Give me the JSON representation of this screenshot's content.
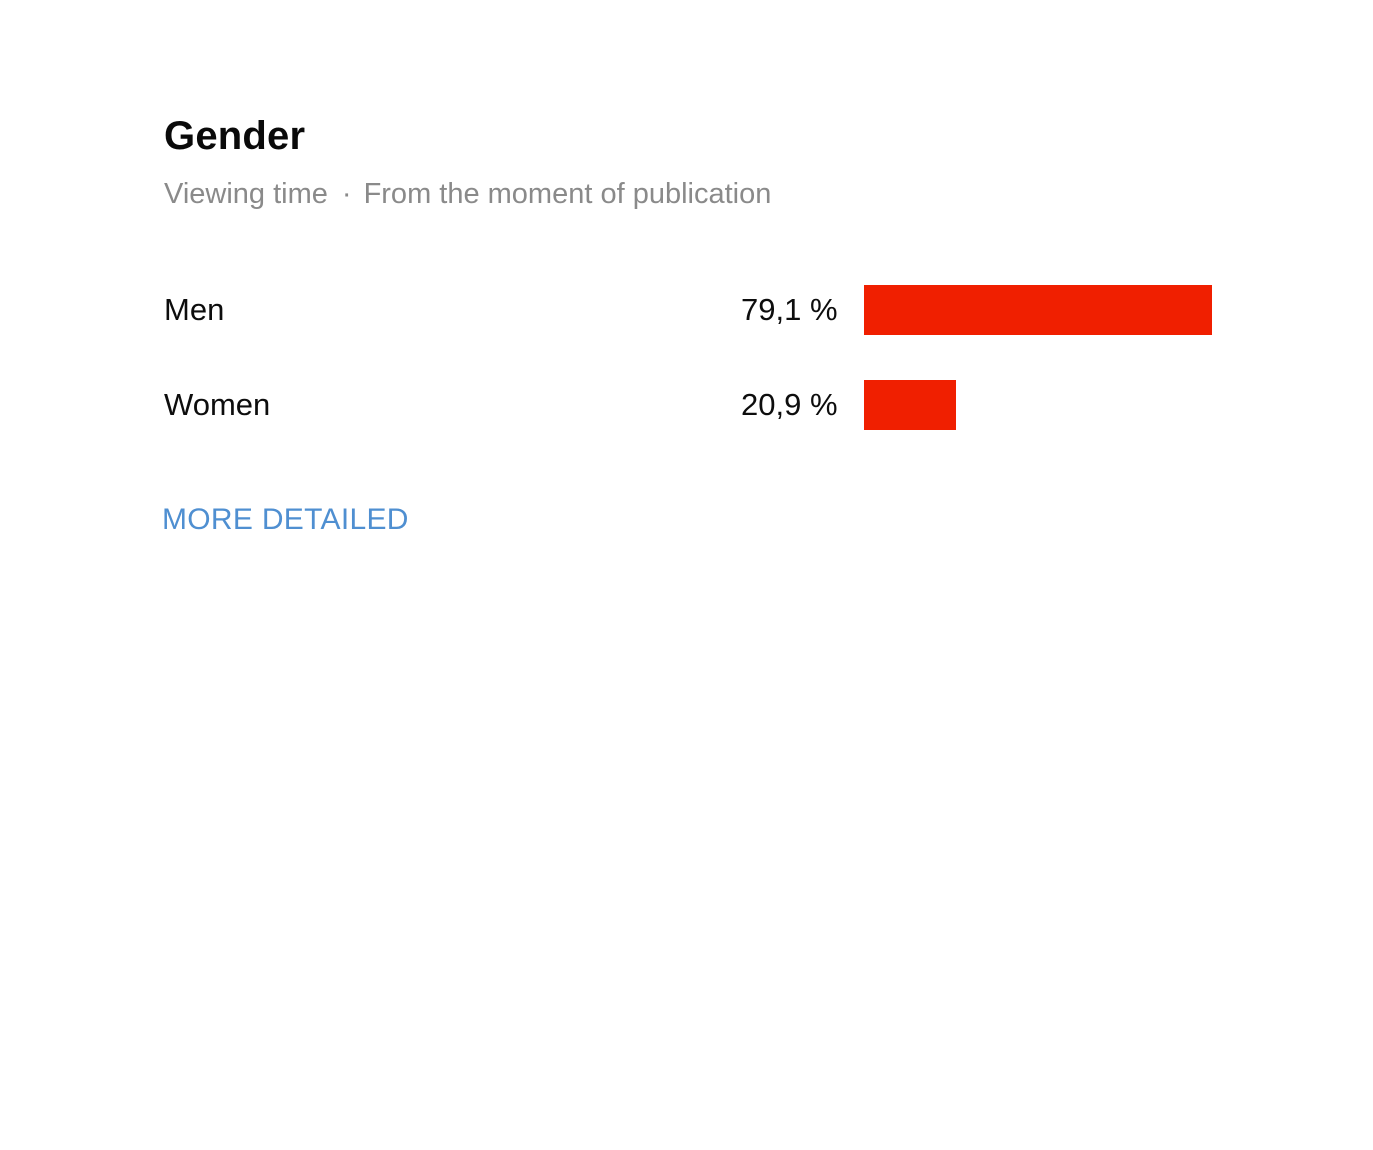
{
  "panel": {
    "title": "Gender",
    "subtitle_metric": "Viewing time",
    "subtitle_separator": "·",
    "subtitle_period": "From the moment of publication",
    "more_label": "MORE DETAILED",
    "link_color": "#4f8fd1"
  },
  "chart_data": {
    "type": "bar",
    "orientation": "horizontal",
    "categories": [
      "Men",
      "Women"
    ],
    "values": [
      79.1,
      20.9
    ],
    "value_labels": [
      "79,1 %",
      "20,9 %"
    ],
    "unit": "%",
    "xlim": [
      0,
      100
    ],
    "bar_color": "#f01f00",
    "grid": false
  }
}
